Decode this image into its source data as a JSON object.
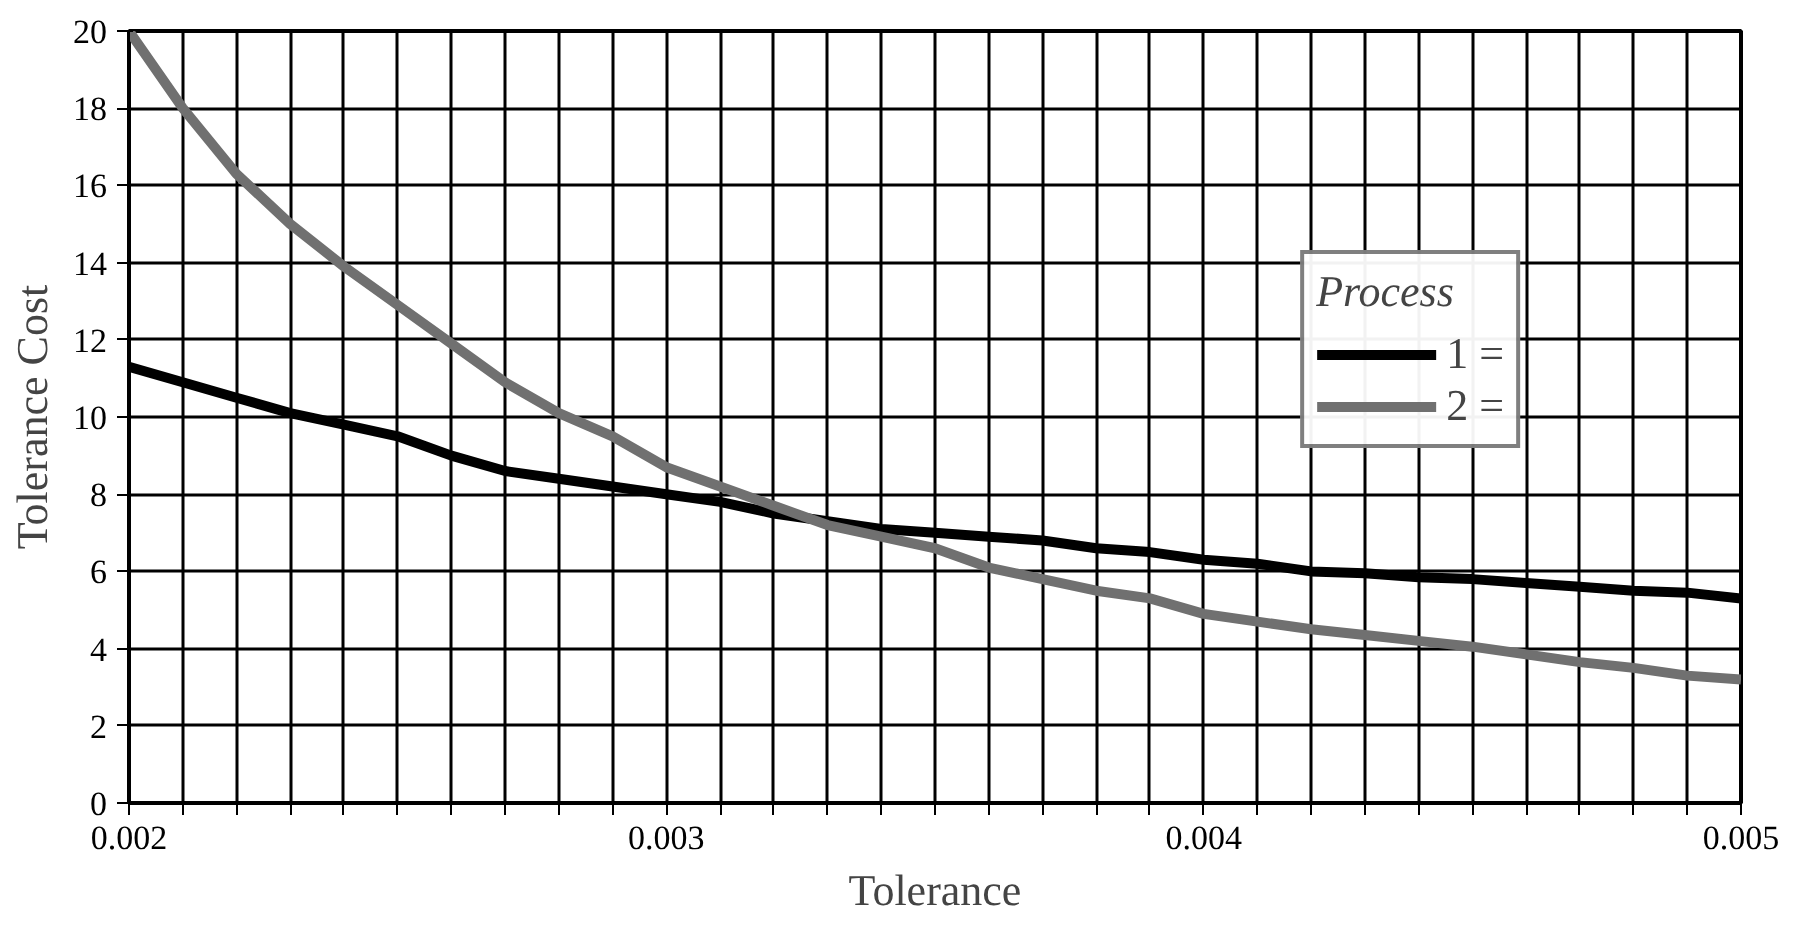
{
  "chart_data": {
    "type": "line",
    "xlabel": "Tolerance",
    "ylabel": "Tolerance Cost",
    "legend_title": "Process",
    "legend": "top right",
    "grid": true,
    "line_style": "solid",
    "marker": "none",
    "x": [
      0.002,
      0.0021,
      0.0022,
      0.0023,
      0.0024,
      0.0025,
      0.0026,
      0.0027,
      0.0028,
      0.0029,
      0.003,
      0.0031,
      0.0032,
      0.0033,
      0.0034,
      0.0035,
      0.0036,
      0.0037,
      0.0038,
      0.0039,
      0.004,
      0.0041,
      0.0042,
      0.0043,
      0.0044,
      0.0045,
      0.0046,
      0.0047,
      0.0048,
      0.0049,
      0.005
    ],
    "series": [
      {
        "name": "1 =",
        "color": "#000000",
        "values": [
          11.3,
          10.9,
          10.5,
          10.1,
          9.8,
          9.5,
          9.0,
          8.6,
          8.4,
          8.2,
          8.0,
          7.8,
          7.5,
          7.3,
          7.1,
          7.0,
          6.9,
          6.8,
          6.6,
          6.5,
          6.3,
          6.2,
          6.0,
          5.95,
          5.85,
          5.8,
          5.7,
          5.6,
          5.5,
          5.45,
          5.3
        ]
      },
      {
        "name": "2 =",
        "color": "#707070",
        "values": [
          20,
          18.0,
          16.3,
          15.0,
          13.9,
          12.9,
          11.9,
          10.9,
          10.1,
          9.5,
          8.7,
          8.2,
          7.7,
          7.2,
          6.9,
          6.6,
          6.1,
          5.8,
          5.5,
          5.3,
          4.9,
          4.7,
          4.5,
          4.35,
          4.2,
          4.05,
          3.85,
          3.65,
          3.5,
          3.3,
          3.2
        ]
      }
    ],
    "xlim": [
      0.002,
      0.005
    ],
    "ylim": [
      0,
      20
    ],
    "xticks": [
      {
        "value": 0.002,
        "label": "0.002"
      },
      {
        "value": 0.0021,
        "label": null
      },
      {
        "value": 0.0022,
        "label": null
      },
      {
        "value": 0.0023,
        "label": null
      },
      {
        "value": 0.0024,
        "label": null
      },
      {
        "value": 0.0025,
        "label": null
      },
      {
        "value": 0.0026,
        "label": null
      },
      {
        "value": 0.0027,
        "label": null
      },
      {
        "value": 0.0028,
        "label": null
      },
      {
        "value": 0.0029,
        "label": null
      },
      {
        "value": 0.003,
        "label": "0.003"
      },
      {
        "value": 0.0031,
        "label": null
      },
      {
        "value": 0.0032,
        "label": null
      },
      {
        "value": 0.0033,
        "label": null
      },
      {
        "value": 0.0034,
        "label": null
      },
      {
        "value": 0.0035,
        "label": null
      },
      {
        "value": 0.0036,
        "label": null
      },
      {
        "value": 0.0037,
        "label": null
      },
      {
        "value": 0.0038,
        "label": null
      },
      {
        "value": 0.0039,
        "label": null
      },
      {
        "value": 0.004,
        "label": "0.004"
      },
      {
        "value": 0.0041,
        "label": null
      },
      {
        "value": 0.0042,
        "label": null
      },
      {
        "value": 0.0043,
        "label": null
      },
      {
        "value": 0.0044,
        "label": null
      },
      {
        "value": 0.0045,
        "label": null
      },
      {
        "value": 0.0046,
        "label": null
      },
      {
        "value": 0.0047,
        "label": null
      },
      {
        "value": 0.0048,
        "label": null
      },
      {
        "value": 0.0049,
        "label": null
      },
      {
        "value": 0.005,
        "label": "0.005"
      }
    ],
    "yticks": [
      0,
      2,
      4,
      6,
      8,
      10,
      12,
      14,
      16,
      18,
      20
    ]
  }
}
